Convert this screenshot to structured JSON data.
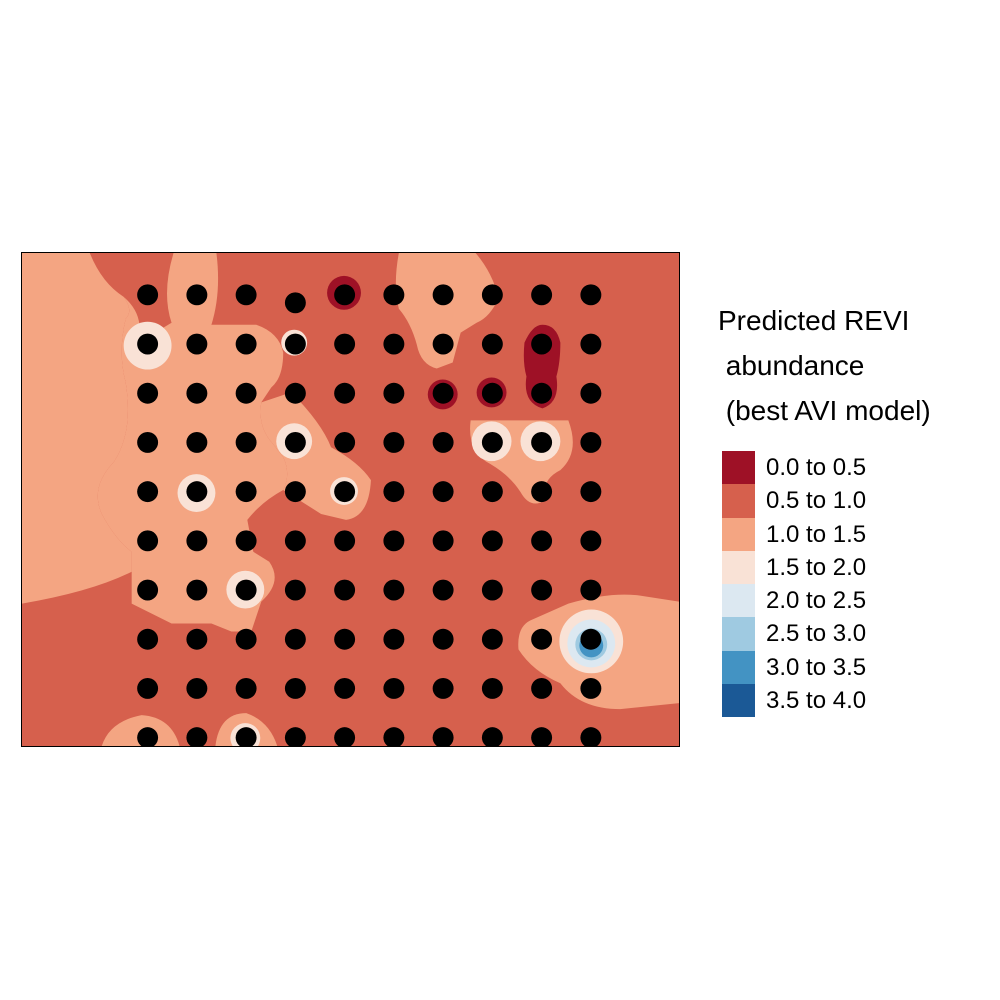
{
  "legend": {
    "title_lines": [
      "Predicted REVI",
      " abundance",
      " (best AVI model)"
    ],
    "classes": [
      {
        "label": "0.0 to 0.5",
        "color": "#9E1126"
      },
      {
        "label": "0.5 to 1.0",
        "color": "#D6604D"
      },
      {
        "label": "1.0 to 1.5",
        "color": "#F4A582"
      },
      {
        "label": "1.5 to 2.0",
        "color": "#F9E2D6"
      },
      {
        "label": "2.0 to 2.5",
        "color": "#DCE8F1"
      },
      {
        "label": "2.5 to 3.0",
        "color": "#9FCAE1"
      },
      {
        "label": "3.0 to 3.5",
        "color": "#4393C3"
      },
      {
        "label": "3.5 to 4.0",
        "color": "#1B5996"
      }
    ]
  },
  "survey_grid": {
    "columns": 10,
    "rows": 10,
    "point_color": "#000000",
    "point_classes_by_row": [
      [
        1,
        1,
        1,
        1,
        0,
        1,
        1,
        1,
        1,
        1
      ],
      [
        3,
        1,
        1,
        2,
        1,
        1,
        1,
        1,
        0,
        1
      ],
      [
        1,
        2,
        1,
        1,
        1,
        0,
        0,
        0,
        1,
        1
      ],
      [
        2,
        1,
        2,
        3,
        1,
        1,
        1,
        3,
        3,
        1
      ],
      [
        1,
        3,
        1,
        1,
        3,
        1,
        1,
        1,
        2,
        1
      ],
      [
        1,
        2,
        1,
        1,
        1,
        1,
        1,
        1,
        1,
        1
      ],
      [
        1,
        2,
        3,
        1,
        1,
        1,
        1,
        1,
        1,
        1
      ],
      [
        1,
        1,
        1,
        1,
        1,
        1,
        1,
        1,
        1,
        5
      ],
      [
        1,
        1,
        1,
        1,
        1,
        1,
        1,
        1,
        1,
        1
      ],
      [
        1,
        1,
        2,
        1,
        1,
        1,
        1,
        1,
        1,
        1
      ]
    ]
  }
}
